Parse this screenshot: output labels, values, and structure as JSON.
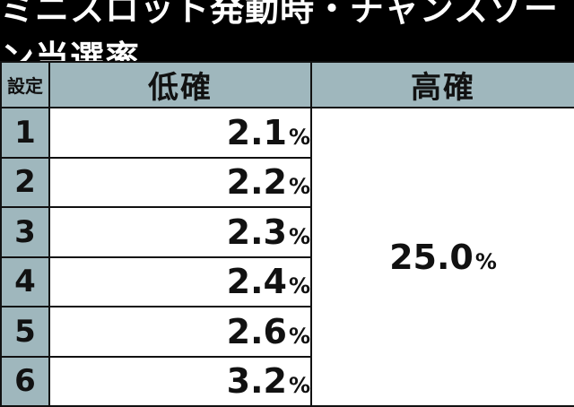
{
  "title": "ミニスロット発動時・チャンスゾーン当選率",
  "colors": {
    "header_bg": "#9fb7bd",
    "title_bg": "#000000"
  },
  "table": {
    "headers": {
      "setting": "設定",
      "low": "低確",
      "high": "高確"
    },
    "rows": [
      {
        "setting": "1",
        "low": "2.1",
        "unit": "%"
      },
      {
        "setting": "2",
        "low": "2.2",
        "unit": "%"
      },
      {
        "setting": "3",
        "low": "2.3",
        "unit": "%"
      },
      {
        "setting": "4",
        "low": "2.4",
        "unit": "%"
      },
      {
        "setting": "5",
        "low": "2.6",
        "unit": "%"
      },
      {
        "setting": "6",
        "low": "3.2",
        "unit": "%"
      }
    ],
    "high": {
      "value": "25.0",
      "unit": "%"
    }
  }
}
